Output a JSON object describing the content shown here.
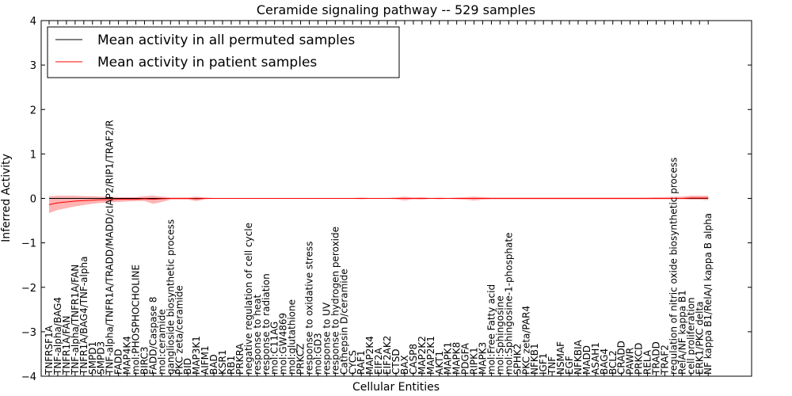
{
  "chart_data": {
    "type": "line",
    "title": "Ceramide signaling pathway -- 529 samples",
    "xlabel": "Cellular Entities",
    "ylabel": "Inferred Activity",
    "ylim": [
      -4,
      4
    ],
    "yticks": [
      "−4",
      "−3",
      "−2",
      "−1",
      "0",
      "1",
      "2",
      "3",
      "4"
    ],
    "grid": false,
    "legend_position": "top-left",
    "colors": {
      "permuted": "#000000",
      "patient": "#ff0000",
      "patient_band": "#ff9999",
      "permuted_band": "#c8c8e6"
    },
    "categories": [
      "TNFRSF1A",
      "TNF-alpha/BAG4",
      "TNFR1A/FAN",
      "TNF-alpha/TNFR1A/FAN",
      "TNFR1A/BAG4/TNF-alpha",
      "SMPD1",
      "SMPD3",
      "TNF-alpha/TNFR1A/TRADD/MADD/cIAP2/RIP1/TRAF2/R",
      "FADD",
      "MAP4K4",
      "mol:PHOSPHOCHOLINE",
      "BIRC3",
      "FADD/Caspase 8",
      "mol:ceramide",
      "ganglioside biosynthetic process",
      "PKC zeta/ceramide",
      "BID",
      "MAP3K1",
      "AIFM1",
      "BAD",
      "KSR1",
      "RB1",
      "PRKRA",
      "negative regulation of cell cycle",
      "response to heat",
      "response to radiation",
      "mol:C11AG",
      "mol:GW4869",
      "mol:glutathione",
      "PRKCZ",
      "response to oxidative stress",
      "mol:GD3",
      "response to UV",
      "response to hydrogen peroxide",
      "Cathepsin D/ceramide",
      "CYCS",
      "RAF1",
      "MAP2K4",
      "EIF2A",
      "EIF2AK2",
      "CTSD",
      "BAX",
      "CASP8",
      "MAP2K2",
      "MAP2K1",
      "AKT1",
      "MAPK1",
      "MAPK8",
      "PDGFA",
      "RIPK1",
      "MAPK3",
      "mol:Free Fatty acid",
      "mol:Sphingosine",
      "mol:Sphingosine-1-phosphate",
      "SPHK2",
      "PKC zeta/PAR4",
      "NFKB1",
      "IGF1",
      "TNF",
      "NSMAF",
      "EGF",
      "NFKBIA",
      "MADD",
      "ASAH1",
      "BAG4",
      "BCL2",
      "CRADD",
      "PAWR",
      "PRKCD",
      "RELA",
      "TRADD",
      "TRAF2",
      "regulation of nitric oxide biosynthetic process",
      "RelA/NF kappa B1",
      "cell proliferation",
      "ERK1/PKC delta",
      "NF kappa B1/RelA/I kappa B alpha"
    ],
    "series": [
      {
        "name": "Mean activity in all permuted samples",
        "values": [
          0.0,
          0.0,
          0.0,
          0.0,
          0.0,
          0.0,
          0.0,
          0.0,
          0.0,
          0.0,
          0.0,
          0.0,
          0.0,
          0.0,
          0.0,
          0.0,
          0.0,
          0.0,
          0.0,
          0.0,
          0.0,
          0.0,
          0.0,
          0.0,
          0.0,
          0.0,
          0.0,
          0.0,
          0.0,
          0.0,
          0.0,
          0.0,
          0.0,
          0.0,
          0.0,
          0.0,
          0.0,
          0.0,
          0.0,
          0.0,
          0.0,
          0.0,
          0.0,
          0.0,
          0.0,
          0.0,
          0.0,
          0.0,
          0.0,
          0.0,
          0.0,
          0.0,
          0.0,
          0.0,
          0.0,
          0.0,
          0.0,
          0.0,
          0.0,
          0.0,
          0.0,
          0.0,
          0.0,
          0.0,
          0.0,
          0.0,
          0.0,
          0.0,
          0.0,
          0.0,
          0.0,
          0.0,
          0.0,
          0.0,
          0.0,
          0.0,
          0.0
        ]
      },
      {
        "name": "Mean activity in patient samples",
        "values": [
          -0.14,
          -0.1,
          -0.08,
          -0.06,
          -0.05,
          -0.04,
          -0.03,
          -0.03,
          -0.02,
          -0.02,
          -0.02,
          -0.01,
          -0.02,
          -0.01,
          0.0,
          0.0,
          0.0,
          -0.01,
          0.0,
          0.0,
          0.0,
          0.0,
          0.0,
          0.0,
          0.0,
          0.0,
          0.0,
          0.0,
          0.0,
          0.0,
          0.0,
          0.0,
          0.0,
          0.0,
          0.0,
          0.0,
          0.0,
          0.0,
          0.0,
          0.0,
          0.0,
          0.0,
          0.0,
          0.0,
          0.0,
          0.0,
          0.0,
          0.0,
          0.0,
          0.0,
          0.0,
          0.0,
          0.0,
          0.0,
          0.0,
          0.0,
          0.0,
          0.0,
          0.0,
          0.0,
          0.0,
          0.0,
          0.0,
          0.0,
          0.0,
          0.0,
          0.0,
          0.0,
          0.0,
          0.0,
          0.0,
          0.0,
          0.0,
          0.0,
          0.01,
          0.01,
          0.01
        ],
        "band_upper": [
          0.05,
          0.06,
          0.06,
          0.06,
          0.05,
          0.05,
          0.04,
          0.04,
          0.03,
          0.03,
          0.03,
          0.05,
          0.06,
          0.04,
          0.02,
          0.02,
          0.02,
          0.04,
          0.02,
          0.01,
          0.01,
          0.01,
          0.01,
          0.01,
          0.01,
          0.01,
          0.01,
          0.01,
          0.01,
          0.01,
          0.01,
          0.01,
          0.01,
          0.01,
          0.01,
          0.01,
          0.02,
          0.01,
          0.01,
          0.01,
          0.02,
          0.04,
          0.02,
          0.03,
          0.01,
          0.02,
          0.01,
          0.02,
          0.03,
          0.04,
          0.03,
          0.02,
          0.02,
          0.02,
          0.02,
          0.02,
          0.02,
          0.02,
          0.02,
          0.02,
          0.02,
          0.02,
          0.02,
          0.02,
          0.02,
          0.02,
          0.02,
          0.02,
          0.02,
          0.02,
          0.03,
          0.03,
          0.04,
          0.04,
          0.06,
          0.06,
          0.06
        ],
        "band_lower": [
          -0.33,
          -0.26,
          -0.22,
          -0.18,
          -0.15,
          -0.12,
          -0.1,
          -0.09,
          -0.08,
          -0.07,
          -0.06,
          -0.06,
          -0.12,
          -0.08,
          -0.03,
          -0.03,
          -0.03,
          -0.06,
          -0.02,
          -0.01,
          -0.01,
          -0.01,
          -0.01,
          -0.01,
          -0.01,
          -0.01,
          -0.01,
          -0.01,
          -0.01,
          -0.01,
          -0.01,
          -0.01,
          -0.01,
          -0.01,
          -0.01,
          -0.01,
          -0.02,
          -0.01,
          -0.01,
          -0.01,
          -0.02,
          -0.05,
          -0.02,
          -0.03,
          -0.01,
          -0.02,
          -0.01,
          -0.02,
          -0.03,
          -0.05,
          -0.03,
          -0.02,
          -0.02,
          -0.02,
          -0.02,
          -0.02,
          -0.02,
          -0.02,
          -0.02,
          -0.02,
          -0.02,
          -0.02,
          -0.02,
          -0.02,
          -0.02,
          -0.02,
          -0.02,
          -0.02,
          -0.02,
          -0.02,
          -0.02,
          -0.02,
          -0.02,
          -0.02,
          -0.03,
          -0.03,
          -0.04
        ]
      }
    ]
  }
}
